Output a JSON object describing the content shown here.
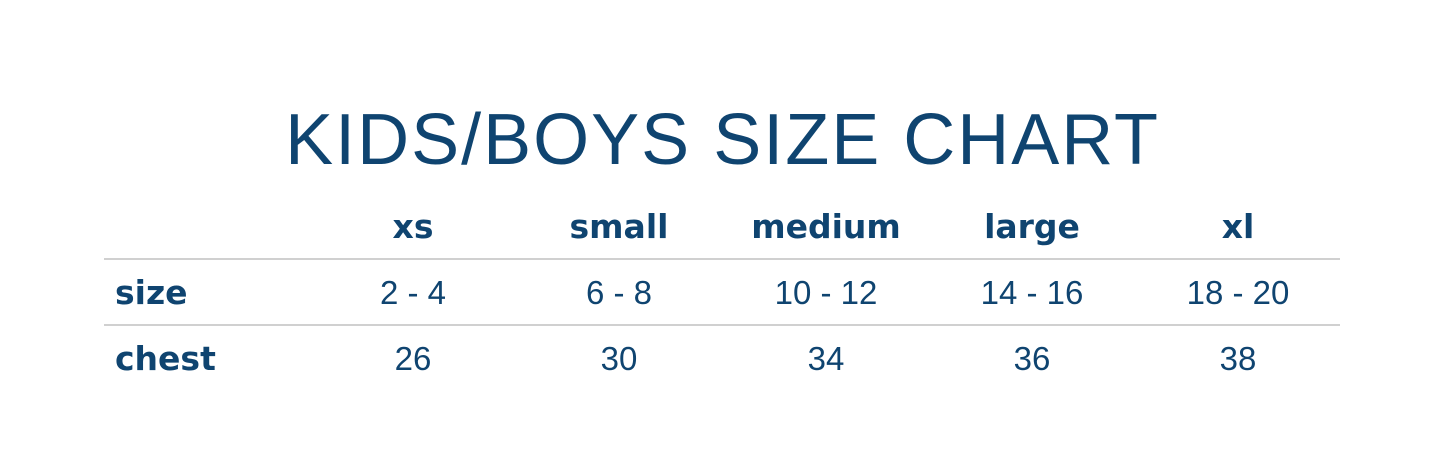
{
  "title": "KIDS/BOYS SIZE CHART",
  "columns": [
    "xs",
    "small",
    "medium",
    "large",
    "xl"
  ],
  "rows": [
    {
      "label": "size",
      "values": [
        "2 - 4",
        "6 - 8",
        "10 - 12",
        "14 - 16",
        "18 - 20"
      ]
    },
    {
      "label": "chest",
      "values": [
        "26",
        "30",
        "34",
        "36",
        "38"
      ]
    }
  ],
  "colors": {
    "text": "#0f4470",
    "rule": "#d0d0d0"
  }
}
